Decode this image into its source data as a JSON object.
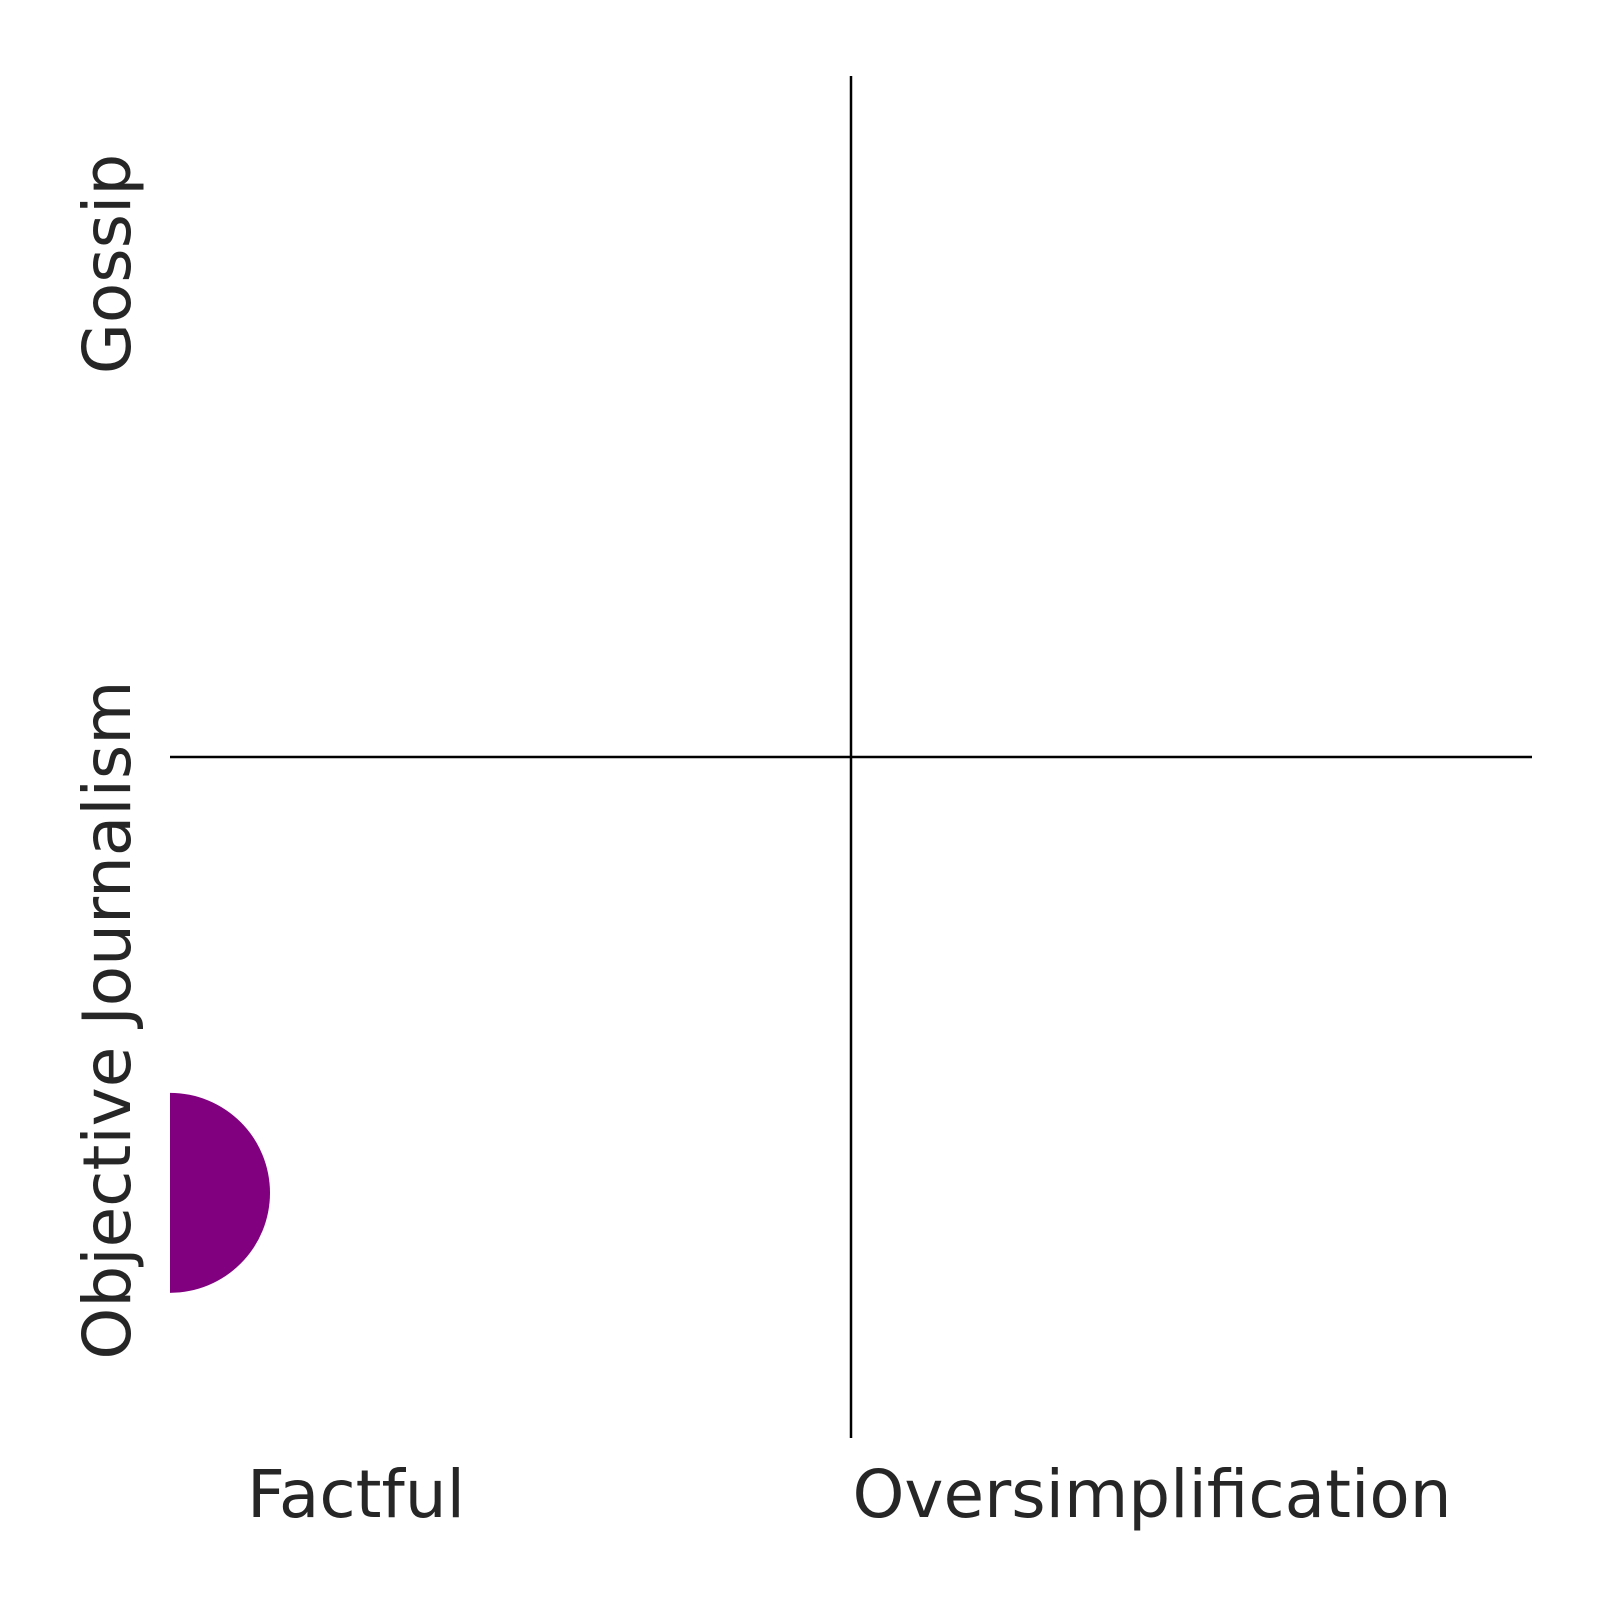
{
  "chart_data": {
    "type": "scatter",
    "title": "",
    "x_labels": [
      "Factful",
      "Oversimplification"
    ],
    "y_labels": [
      "Objective Journalism",
      "Gossip"
    ],
    "xlim": [
      0,
      1
    ],
    "ylim": [
      0,
      1
    ],
    "dividers": {
      "x": 0.5,
      "y": 0.5
    },
    "grid": false,
    "points": [
      {
        "x": 0.0,
        "y": 0.18,
        "color": "#800080"
      }
    ]
  }
}
